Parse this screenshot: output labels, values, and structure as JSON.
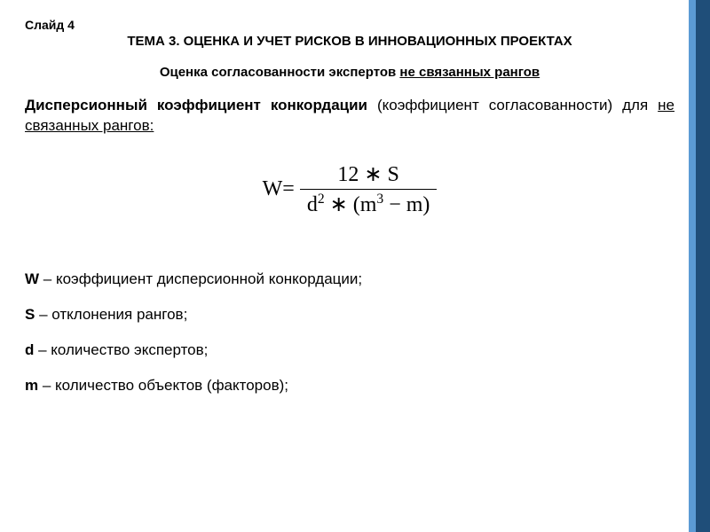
{
  "slide_label": "Слайд 4",
  "topic_title": "ТЕМА 3. ОЦЕНКА И УЧЕТ РИСКОВ В ИННОВАЦИОННЫХ ПРОЕКТАХ",
  "subtitle_prefix": "Оценка согласованности экспертов  ",
  "subtitle_underlined": "не связанных рангов",
  "para_bold": "Дисперсионный коэффициент конкордации",
  "para_tail": " (коэффициент согласованности)  для ",
  "para_underlined": "не связанных рангов:",
  "formula": {
    "lhs": "W",
    "eq": " = ",
    "num": "12 ∗ S",
    "den_d": "d",
    "den_d_sup": "2",
    "den_mid": " ∗ (",
    "den_m": "m",
    "den_m_sup": "3",
    "den_tail": " − m)"
  },
  "defs": [
    {
      "sym": "W",
      "text": " – коэффициент дисперсионной конкордации;"
    },
    {
      "sym": "S",
      "text": " – отклонения рангов;"
    },
    {
      "sym": "d",
      "text": " – количество экспертов;"
    },
    {
      "sym": "m",
      "text": " – количество объектов (факторов);"
    }
  ],
  "colors": {
    "stripe_light": "#5b9bd5",
    "stripe_dark": "#1f4e79",
    "background": "#ffffff",
    "text": "#000000"
  }
}
